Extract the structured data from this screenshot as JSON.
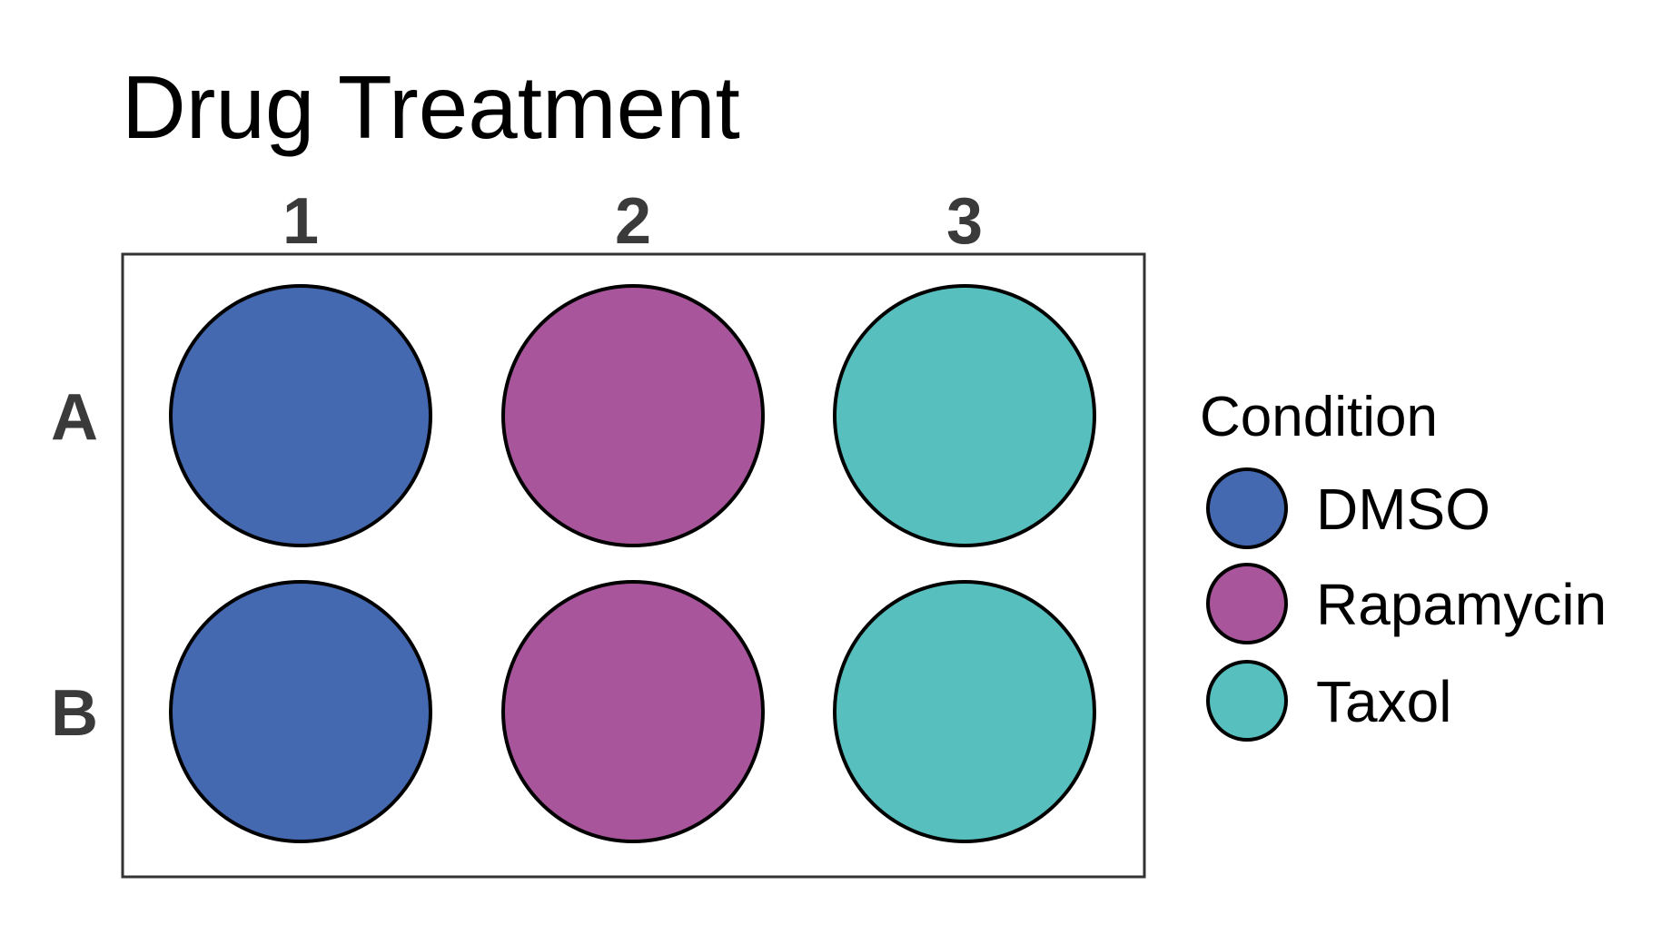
{
  "chart_data": {
    "type": "plate-layout",
    "title": "Drug Treatment",
    "columns": [
      "1",
      "2",
      "3"
    ],
    "rows": [
      "A",
      "B"
    ],
    "wells": [
      {
        "row": "A",
        "column": "1",
        "condition": "DMSO"
      },
      {
        "row": "A",
        "column": "2",
        "condition": "Rapamycin"
      },
      {
        "row": "A",
        "column": "3",
        "condition": "Taxol"
      },
      {
        "row": "B",
        "column": "1",
        "condition": "DMSO"
      },
      {
        "row": "B",
        "column": "2",
        "condition": "Rapamycin"
      },
      {
        "row": "B",
        "column": "3",
        "condition": "Taxol"
      }
    ],
    "legend": {
      "title": "Condition",
      "placement": "right",
      "entries": [
        {
          "label": "DMSO",
          "color": "#4569B0"
        },
        {
          "label": "Rapamycin",
          "color": "#A8559C"
        },
        {
          "label": "Taxol",
          "color": "#57C0BE"
        }
      ]
    }
  }
}
